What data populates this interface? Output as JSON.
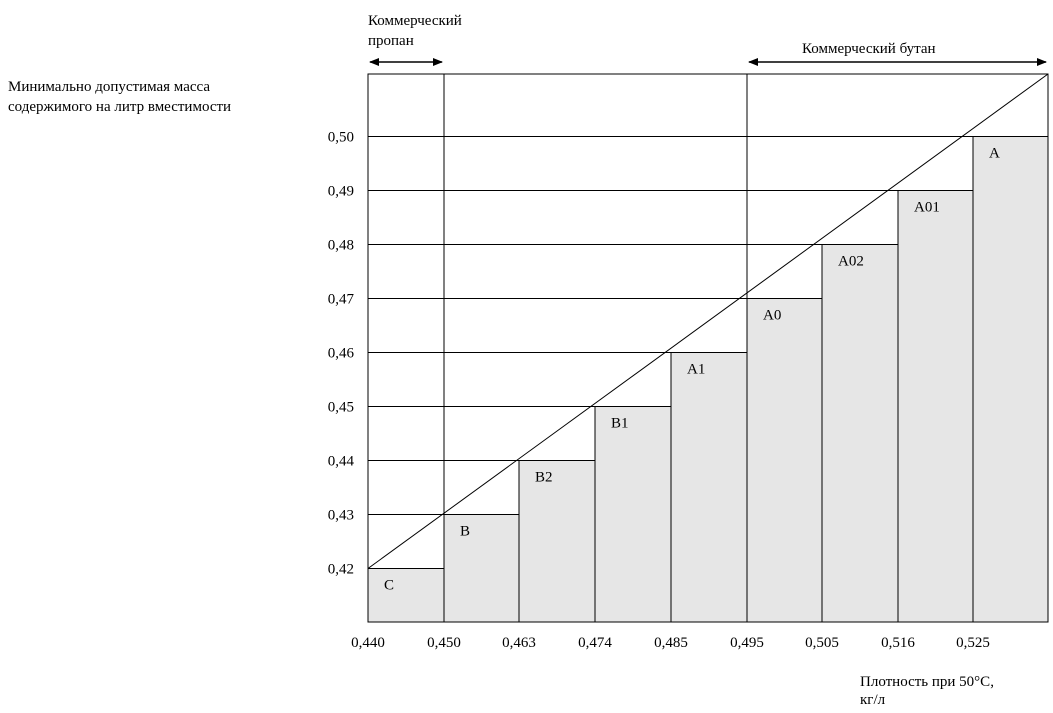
{
  "chart_data": {
    "type": "bar",
    "title": "",
    "ylabel_lines": [
      "Минимально допустимая масса",
      "содержимого на литр вместимости"
    ],
    "xlabel_lines": [
      "Плотность при 50°C,",
      "кг/л"
    ],
    "x_ticks": [
      "0,440",
      "0,450",
      "0,463",
      "0,474",
      "0,485",
      "0,495",
      "0,505",
      "0,516",
      "0,525"
    ],
    "y_ticks": [
      "0,42",
      "0,43",
      "0,44",
      "0,45",
      "0,46",
      "0,47",
      "0,48",
      "0,49",
      "0,50"
    ],
    "ylim": [
      0.41,
      0.51
    ],
    "categories": [
      "C",
      "B",
      "B2",
      "B1",
      "A1",
      "A0",
      "A02",
      "A01",
      "A"
    ],
    "values": [
      0.42,
      0.43,
      0.44,
      0.45,
      0.46,
      0.47,
      0.48,
      0.49,
      0.5
    ],
    "bar_color": "#e6e6e6",
    "grid": true,
    "diagonal_line": true,
    "annotations": {
      "propane_lines": [
        "Коммерческий",
        "пропан"
      ],
      "butane": "Коммерческий бутан"
    }
  }
}
